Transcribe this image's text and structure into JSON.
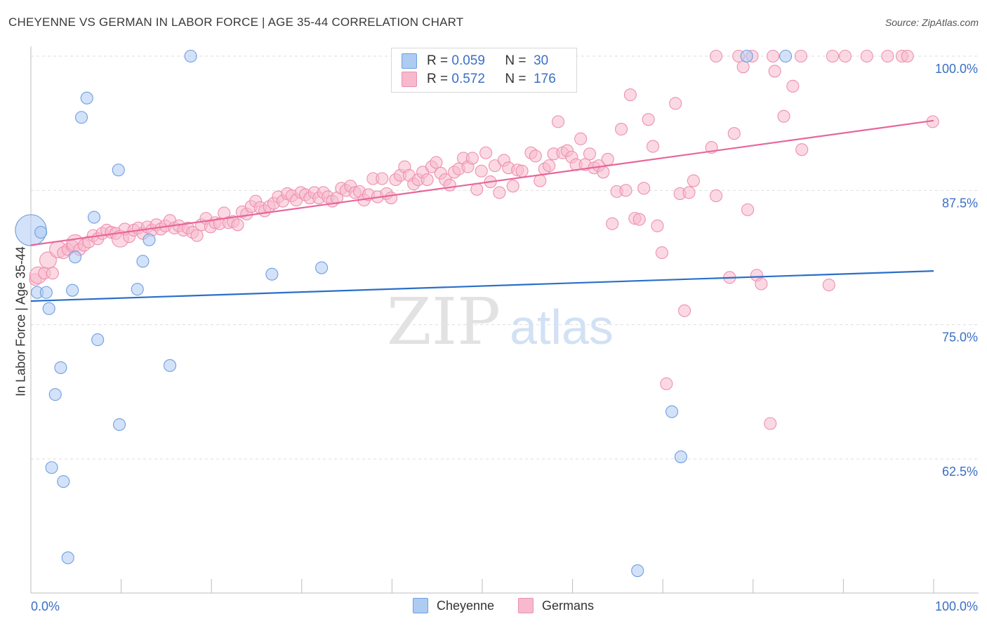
{
  "title": "CHEYENNE VS GERMAN IN LABOR FORCE | AGE 35-44 CORRELATION CHART",
  "source": "Source: ZipAtlas.com",
  "watermark": {
    "zip": "ZIP",
    "atlas": "atlas"
  },
  "legend": {
    "r_label": "R =",
    "n_label": "N =",
    "cheyenne": {
      "r": "0.059",
      "n": "30"
    },
    "germans": {
      "r": "0.572",
      "n": "176"
    }
  },
  "bottom_legend": {
    "cheyenne": "Cheyenne",
    "germans": "Germans"
  },
  "colors": {
    "cheyenne_fill": "#aecbf2",
    "cheyenne_stroke": "#6e9fe0",
    "cheyenne_line": "#2a6fc9",
    "germans_fill": "#f7b9cc",
    "germans_stroke": "#ee8fb0",
    "germans_line": "#e8669a",
    "axis_text": "#3a6fc4",
    "grid": "#dedede"
  },
  "chart_data": {
    "type": "scatter",
    "title": "CHEYENNE VS GERMAN IN LABOR FORCE | AGE 35-44 CORRELATION CHART",
    "xlabel": "",
    "ylabel": "In Labor Force | Age 35-44",
    "xlim": [
      0,
      100
    ],
    "ylim": [
      50,
      101.5
    ],
    "x_tick_labels": [
      "0.0%",
      "100.0%"
    ],
    "y_ticks": [
      62.5,
      75.0,
      87.5,
      100.0
    ],
    "y_tick_labels": [
      "62.5%",
      "75.0%",
      "87.5%",
      "100.0%"
    ],
    "grid": true,
    "legend_position": "top-center",
    "series": [
      {
        "name": "Cheyenne",
        "r": 0.059,
        "n": 30,
        "trend": {
          "x": [
            0,
            100
          ],
          "y": [
            77.2,
            80.0
          ]
        },
        "points": [
          [
            0,
            83.8,
            2.6
          ],
          [
            1.1,
            83.6,
            1
          ],
          [
            0.7,
            78.0,
            1
          ],
          [
            1.7,
            78.0,
            1
          ],
          [
            2.0,
            76.5,
            1
          ],
          [
            3.3,
            71.0,
            1
          ],
          [
            2.7,
            68.5,
            1
          ],
          [
            2.3,
            61.7,
            1
          ],
          [
            3.6,
            60.4,
            1
          ],
          [
            4.1,
            53.3,
            1
          ],
          [
            4.6,
            78.2,
            1
          ],
          [
            4.9,
            81.3,
            1
          ],
          [
            5.6,
            94.3,
            1
          ],
          [
            6.2,
            96.1,
            1
          ],
          [
            7.0,
            85.0,
            1
          ],
          [
            7.4,
            73.6,
            1
          ],
          [
            9.7,
            89.4,
            1
          ],
          [
            9.8,
            65.7,
            1
          ],
          [
            11.8,
            78.3,
            1
          ],
          [
            12.4,
            80.9,
            1
          ],
          [
            13.1,
            82.9,
            1
          ],
          [
            15.4,
            71.2,
            1
          ],
          [
            17.7,
            100.0,
            1
          ],
          [
            26.7,
            79.7,
            1
          ],
          [
            32.2,
            80.3,
            1
          ],
          [
            67.2,
            52.1,
            1
          ],
          [
            71.0,
            66.9,
            1
          ],
          [
            72.0,
            62.7,
            1
          ],
          [
            79.3,
            100.0,
            1
          ],
          [
            83.6,
            100.0,
            1
          ]
        ]
      },
      {
        "name": "Germans",
        "r": 0.572,
        "n": 176,
        "trend": {
          "x": [
            0,
            100
          ],
          "y": [
            82.4,
            94.0
          ]
        },
        "points": [
          [
            0.5,
            79.2,
            1
          ],
          [
            0.8,
            79.6,
            1.4
          ],
          [
            1.5,
            79.8,
            1
          ],
          [
            1.9,
            81.0,
            1.4
          ],
          [
            2.4,
            79.8,
            1
          ],
          [
            3.0,
            82.0,
            1.4
          ],
          [
            3.6,
            81.7,
            1
          ],
          [
            4.1,
            82.0,
            1
          ],
          [
            4.6,
            82.3,
            1
          ],
          [
            4.9,
            82.6,
            1.4
          ],
          [
            5.4,
            82.0,
            1
          ],
          [
            5.9,
            82.4,
            1
          ],
          [
            6.4,
            82.7,
            1
          ],
          [
            6.9,
            83.3,
            1
          ],
          [
            7.4,
            83.0,
            1
          ],
          [
            7.9,
            83.5,
            1
          ],
          [
            8.4,
            83.8,
            1
          ],
          [
            8.9,
            83.6,
            1
          ],
          [
            9.4,
            83.5,
            1
          ],
          [
            9.9,
            83.0,
            1.4
          ],
          [
            10.4,
            83.9,
            1
          ],
          [
            10.9,
            83.2,
            1
          ],
          [
            11.4,
            83.8,
            1
          ],
          [
            11.9,
            84.0,
            1
          ],
          [
            12.4,
            83.5,
            1
          ],
          [
            12.9,
            84.1,
            1
          ],
          [
            13.4,
            83.8,
            1
          ],
          [
            13.9,
            84.3,
            1
          ],
          [
            14.4,
            83.9,
            1
          ],
          [
            14.9,
            84.2,
            1
          ],
          [
            15.4,
            84.7,
            1
          ],
          [
            15.9,
            84.0,
            1
          ],
          [
            16.4,
            84.2,
            1
          ],
          [
            16.9,
            83.8,
            1
          ],
          [
            17.4,
            84.0,
            1
          ],
          [
            17.9,
            83.6,
            1
          ],
          [
            18.4,
            83.3,
            1
          ],
          [
            18.9,
            84.3,
            1
          ],
          [
            19.4,
            84.9,
            1
          ],
          [
            19.9,
            84.1,
            1
          ],
          [
            20.4,
            84.5,
            1
          ],
          [
            20.9,
            84.4,
            1
          ],
          [
            21.4,
            85.4,
            1
          ],
          [
            21.9,
            84.5,
            1
          ],
          [
            22.4,
            84.6,
            1
          ],
          [
            22.9,
            84.3,
            1
          ],
          [
            23.4,
            85.5,
            1
          ],
          [
            23.9,
            85.3,
            1
          ],
          [
            24.4,
            86.0,
            1
          ],
          [
            24.9,
            86.5,
            1
          ],
          [
            25.4,
            85.9,
            1
          ],
          [
            25.9,
            85.6,
            1
          ],
          [
            26.4,
            86.0,
            1
          ],
          [
            26.9,
            86.3,
            1
          ],
          [
            27.4,
            86.9,
            1
          ],
          [
            27.9,
            86.5,
            1
          ],
          [
            28.4,
            87.2,
            1
          ],
          [
            28.9,
            87.0,
            1
          ],
          [
            29.4,
            86.6,
            1
          ],
          [
            29.9,
            87.3,
            1
          ],
          [
            30.4,
            87.1,
            1
          ],
          [
            30.9,
            86.8,
            1
          ],
          [
            31.4,
            87.3,
            1
          ],
          [
            31.9,
            86.8,
            1
          ],
          [
            32.4,
            87.3,
            1
          ],
          [
            32.9,
            86.9,
            1
          ],
          [
            33.4,
            86.5,
            1
          ],
          [
            33.9,
            86.8,
            1
          ],
          [
            34.4,
            87.7,
            1
          ],
          [
            34.9,
            87.5,
            1
          ],
          [
            35.4,
            87.9,
            1
          ],
          [
            35.9,
            87.3,
            1
          ],
          [
            36.4,
            87.4,
            1
          ],
          [
            36.9,
            86.6,
            1
          ],
          [
            37.4,
            87.1,
            1
          ],
          [
            37.9,
            88.6,
            1
          ],
          [
            38.4,
            86.9,
            1
          ],
          [
            38.9,
            88.6,
            1
          ],
          [
            39.4,
            87.2,
            1
          ],
          [
            39.9,
            86.8,
            1
          ],
          [
            40.4,
            88.5,
            1
          ],
          [
            40.9,
            88.9,
            1
          ],
          [
            41.4,
            89.7,
            1
          ],
          [
            41.9,
            88.9,
            1
          ],
          [
            42.4,
            88.1,
            1
          ],
          [
            42.9,
            88.5,
            1
          ],
          [
            43.4,
            89.2,
            1
          ],
          [
            43.9,
            88.5,
            1
          ],
          [
            44.4,
            89.7,
            1
          ],
          [
            44.9,
            90.1,
            1
          ],
          [
            45.4,
            89.1,
            1
          ],
          [
            45.9,
            88.5,
            1
          ],
          [
            46.4,
            88.0,
            1
          ],
          [
            46.9,
            89.2,
            1
          ],
          [
            47.4,
            89.5,
            1
          ],
          [
            47.9,
            90.5,
            1
          ],
          [
            48.4,
            89.7,
            1
          ],
          [
            48.9,
            90.5,
            1
          ],
          [
            49.4,
            87.6,
            1
          ],
          [
            49.9,
            89.3,
            1
          ],
          [
            50.4,
            91.0,
            1
          ],
          [
            50.9,
            88.3,
            1
          ],
          [
            51.4,
            89.8,
            1
          ],
          [
            51.9,
            87.3,
            1
          ],
          [
            52.4,
            90.3,
            1
          ],
          [
            52.9,
            89.6,
            1
          ],
          [
            53.4,
            87.9,
            1
          ],
          [
            53.9,
            89.4,
            1
          ],
          [
            54.4,
            89.3,
            1
          ],
          [
            55.4,
            91.0,
            1
          ],
          [
            55.9,
            90.7,
            1
          ],
          [
            56.4,
            88.4,
            1
          ],
          [
            56.9,
            89.5,
            1
          ],
          [
            57.4,
            89.8,
            1
          ],
          [
            57.9,
            90.9,
            1
          ],
          [
            58.4,
            93.9,
            1
          ],
          [
            58.9,
            91.0,
            1
          ],
          [
            59.4,
            91.2,
            1
          ],
          [
            59.9,
            90.6,
            1
          ],
          [
            60.4,
            89.9,
            1
          ],
          [
            60.9,
            92.3,
            1
          ],
          [
            61.4,
            89.9,
            1
          ],
          [
            61.9,
            90.9,
            1
          ],
          [
            62.4,
            89.6,
            1
          ],
          [
            62.9,
            89.8,
            1
          ],
          [
            63.4,
            89.2,
            1
          ],
          [
            63.9,
            90.4,
            1
          ],
          [
            64.4,
            84.4,
            1
          ],
          [
            64.9,
            87.4,
            1
          ],
          [
            65.4,
            93.2,
            1
          ],
          [
            65.9,
            87.5,
            1
          ],
          [
            66.4,
            96.4,
            1
          ],
          [
            66.9,
            84.9,
            1
          ],
          [
            67.4,
            84.8,
            1
          ],
          [
            67.9,
            87.7,
            1
          ],
          [
            68.4,
            94.1,
            1
          ],
          [
            68.9,
            91.6,
            1
          ],
          [
            69.4,
            84.2,
            1
          ],
          [
            69.9,
            81.7,
            1
          ],
          [
            70.4,
            69.5,
            1
          ],
          [
            71.4,
            95.6,
            1
          ],
          [
            71.9,
            87.2,
            1
          ],
          [
            72.4,
            76.3,
            1
          ],
          [
            72.9,
            87.3,
            1
          ],
          [
            73.4,
            88.4,
            1
          ],
          [
            75.4,
            91.5,
            1
          ],
          [
            75.9,
            87.0,
            1
          ],
          [
            77.4,
            79.4,
            1
          ],
          [
            77.9,
            92.8,
            1
          ],
          [
            78.9,
            99.0,
            1
          ],
          [
            79.4,
            85.7,
            1
          ],
          [
            80.4,
            79.6,
            1
          ],
          [
            80.9,
            78.8,
            1
          ],
          [
            81.9,
            65.8,
            1
          ],
          [
            82.4,
            98.6,
            1
          ],
          [
            83.4,
            94.4,
            1
          ],
          [
            84.4,
            97.2,
            1
          ],
          [
            85.4,
            91.3,
            1
          ],
          [
            88.4,
            78.7,
            1
          ],
          [
            75.9,
            100.0,
            1
          ],
          [
            78.4,
            100.0,
            1
          ],
          [
            79.9,
            100.0,
            1
          ],
          [
            82.2,
            100.0,
            1
          ],
          [
            85.3,
            100.0,
            1
          ],
          [
            88.8,
            100.0,
            1
          ],
          [
            90.2,
            100.0,
            1
          ],
          [
            92.6,
            100.0,
            1
          ],
          [
            94.9,
            100.0,
            1
          ],
          [
            96.5,
            100.0,
            1
          ],
          [
            97.1,
            100.0,
            1
          ],
          [
            99.9,
            93.9,
            1
          ]
        ]
      }
    ]
  }
}
